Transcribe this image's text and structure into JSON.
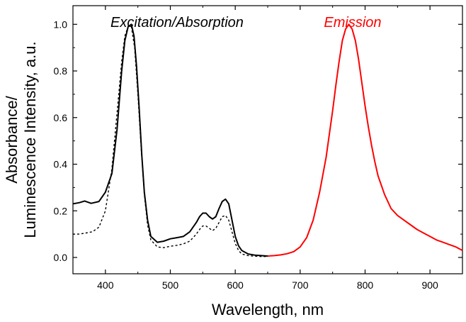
{
  "chart_data": {
    "type": "line",
    "xlabel": "Wavelength, nm",
    "ylabel_lines": [
      "Absorbance/",
      "Luminescence Intensity, a.u."
    ],
    "xlim": [
      350,
      950
    ],
    "ylim": [
      -0.07,
      1.08
    ],
    "x_ticks": [
      400,
      500,
      600,
      700,
      800,
      900
    ],
    "y_ticks": [
      0.0,
      0.2,
      0.4,
      0.6,
      0.8,
      1.0
    ],
    "x_tick_labels": [
      "400",
      "500",
      "600",
      "700",
      "800",
      "900"
    ],
    "y_tick_labels": [
      "0.0",
      "0.2",
      "0.4",
      "0.6",
      "0.8",
      "1.0"
    ],
    "grid": false,
    "annotations": [
      {
        "text": "Excitation/Absorption",
        "color": "#000000"
      },
      {
        "text": "Emission",
        "color": "#ff0000"
      }
    ],
    "series": [
      {
        "color": "#000000",
        "style": "solid",
        "x": [
          350,
          360,
          368,
          378,
          390,
          400,
          410,
          418,
          425,
          430,
          435,
          440,
          444,
          448,
          452,
          456,
          460,
          465,
          470,
          480,
          490,
          500,
          510,
          520,
          530,
          540,
          545,
          550,
          555,
          560,
          565,
          570,
          575,
          580,
          585,
          590,
          595,
          600,
          605,
          610,
          620,
          630,
          640,
          650
        ],
        "y": [
          0.23,
          0.235,
          0.242,
          0.232,
          0.24,
          0.28,
          0.36,
          0.55,
          0.8,
          0.93,
          0.99,
          1.0,
          0.95,
          0.82,
          0.64,
          0.44,
          0.28,
          0.16,
          0.09,
          0.065,
          0.07,
          0.08,
          0.085,
          0.09,
          0.11,
          0.15,
          0.175,
          0.19,
          0.19,
          0.175,
          0.165,
          0.175,
          0.21,
          0.24,
          0.25,
          0.23,
          0.16,
          0.09,
          0.05,
          0.03,
          0.015,
          0.01,
          0.008,
          0.006
        ]
      },
      {
        "color": "#000000",
        "style": "dashed",
        "x": [
          350,
          360,
          370,
          380,
          390,
          400,
          410,
          418,
          425,
          430,
          435,
          440,
          445,
          450,
          455,
          460,
          465,
          470,
          480,
          490,
          500,
          510,
          520,
          530,
          540,
          545,
          550,
          555,
          560,
          565,
          570,
          575,
          580,
          585,
          590,
          595,
          600,
          605,
          610,
          620,
          630,
          640,
          650
        ],
        "y": [
          0.1,
          0.1,
          0.105,
          0.11,
          0.13,
          0.2,
          0.38,
          0.62,
          0.84,
          0.95,
          0.99,
          0.99,
          0.9,
          0.7,
          0.47,
          0.27,
          0.14,
          0.075,
          0.045,
          0.042,
          0.048,
          0.052,
          0.058,
          0.07,
          0.1,
          0.12,
          0.135,
          0.135,
          0.125,
          0.115,
          0.125,
          0.15,
          0.175,
          0.18,
          0.16,
          0.11,
          0.06,
          0.03,
          0.015,
          0.008,
          0.005,
          0.004,
          0.004
        ]
      },
      {
        "color": "#ff0000",
        "style": "solid",
        "x": [
          650,
          660,
          670,
          680,
          690,
          700,
          710,
          720,
          730,
          740,
          750,
          755,
          760,
          765,
          770,
          775,
          780,
          785,
          790,
          795,
          800,
          805,
          810,
          815,
          820,
          830,
          840,
          850,
          860,
          870,
          880,
          890,
          900,
          910,
          920,
          930,
          940,
          950
        ],
        "y": [
          0.006,
          0.008,
          0.011,
          0.016,
          0.025,
          0.045,
          0.085,
          0.16,
          0.28,
          0.43,
          0.63,
          0.74,
          0.84,
          0.93,
          0.98,
          1.0,
          0.98,
          0.93,
          0.85,
          0.75,
          0.65,
          0.56,
          0.48,
          0.41,
          0.35,
          0.27,
          0.21,
          0.18,
          0.16,
          0.14,
          0.12,
          0.105,
          0.09,
          0.075,
          0.065,
          0.055,
          0.045,
          0.03
        ]
      }
    ]
  }
}
